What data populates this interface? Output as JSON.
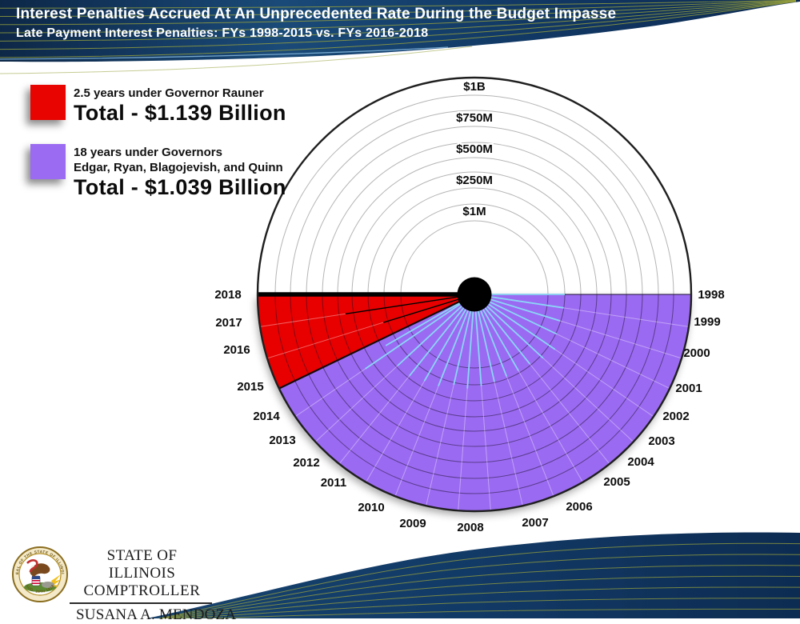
{
  "header": {
    "title": "Interest Penalties Accrued At An Unprecedented Rate During the Budget Impasse",
    "subtitle": "Late Payment Interest Penalties: FYs 1998-2015 vs. FYs 2016-2018"
  },
  "legend": {
    "items": [
      {
        "duration": "2.5 years under Governor Rauner",
        "duration2": "",
        "total": "Total - $1.139 Billion",
        "color": "#e80400"
      },
      {
        "duration": "18 years under Governors",
        "duration2": "Edgar, Ryan, Blagojevish, and Quinn",
        "total": "Total - $1.039 Billion",
        "color": "#9b6bf2"
      }
    ]
  },
  "chart_data": {
    "type": "polar-area",
    "title": "Interest Penalties Accrued At An Unprecedented Rate During the Budget Impasse",
    "subtitle": "Late Payment Interest Penalties: FYs 1998-2015 vs. FYs 2016-2018",
    "layout_hint": "half-circle fan, fiscal years clockwise from right (1998) to left (2018), money rings radiate from center",
    "radial_axis": {
      "tick_labels": [
        "$1M",
        "$250M",
        "$500M",
        "$750M",
        "$1B"
      ]
    },
    "angular_axis": {
      "unit": "fiscal year",
      "years": [
        1998,
        1999,
        2000,
        2001,
        2002,
        2003,
        2004,
        2005,
        2006,
        2007,
        2008,
        2009,
        2010,
        2011,
        2012,
        2013,
        2014,
        2015,
        2016,
        2017,
        2018
      ]
    },
    "series": [
      {
        "name": "FYs 2016-2018 under Governor Rauner",
        "years_covered": [
          2016,
          2017,
          2018
        ],
        "total": "$1.139 Billion",
        "color": "#e80400"
      },
      {
        "name": "FYs 1998-2015 under Governors Edgar, Ryan, Blagojevish, and Quinn",
        "years_covered": [
          1998,
          2015
        ],
        "total": "$1.039 Billion",
        "color": "#9b6bf2"
      }
    ],
    "cyan_indicator_lines": [
      {
        "angle_deg": 0.0,
        "r_frac": 0.417
      },
      {
        "angle_deg": 8.57,
        "r_frac": 0.417
      },
      {
        "angle_deg": 17.14,
        "r_frac": 0.413
      },
      {
        "angle_deg": 25.71,
        "r_frac": 0.421
      },
      {
        "angle_deg": 34.29,
        "r_frac": 0.45
      },
      {
        "angle_deg": 42.86,
        "r_frac": 0.432
      },
      {
        "angle_deg": 51.43,
        "r_frac": 0.41
      },
      {
        "angle_deg": 60.0,
        "r_frac": 0.406
      },
      {
        "angle_deg": 68.57,
        "r_frac": 0.406
      },
      {
        "angle_deg": 77.14,
        "r_frac": 0.413
      },
      {
        "angle_deg": 85.71,
        "r_frac": 0.424
      },
      {
        "angle_deg": 94.29,
        "r_frac": 0.435
      },
      {
        "angle_deg": 102.86,
        "r_frac": 0.428
      },
      {
        "angle_deg": 111.43,
        "r_frac": 0.454
      },
      {
        "angle_deg": 120.0,
        "r_frac": 0.461
      },
      {
        "angle_deg": 128.57,
        "r_frac": 0.48
      },
      {
        "angle_deg": 137.14,
        "r_frac": 0.483
      },
      {
        "angle_deg": 145.71,
        "r_frac": 0.609
      },
      {
        "angle_deg": 150.0,
        "r_frac": 0.472
      }
    ],
    "black_indicator_lines": [
      {
        "angle_deg": 162.86,
        "r_frac": 0.439,
        "width": 1.4
      },
      {
        "angle_deg": 171.43,
        "r_frac": 0.601,
        "width": 1.4
      },
      {
        "angle_deg": 180.0,
        "r_frac": 1.0,
        "width": 5.5
      }
    ]
  },
  "footer": {
    "org_line1": "STATE OF ILLINOIS",
    "org_line2": "COMPTROLLER",
    "name": "SUSANA A. MENDOZA",
    "seal": {
      "top_text": "SEAL OF THE STATE OF ILLINOIS",
      "bottom_text": "AUG. 26TH 1818"
    }
  }
}
